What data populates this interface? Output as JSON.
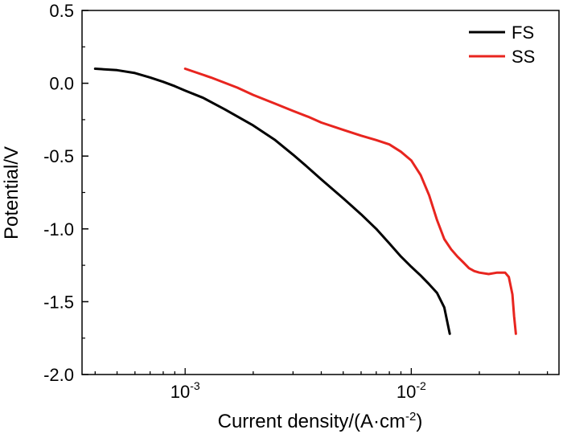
{
  "chart_data": {
    "type": "line",
    "xlabel": "Current density/(A·cm⁻²)",
    "xlabel_base": "Current density/(A·cm",
    "xlabel_exp": "-2",
    "xlabel_tail": ")",
    "ylabel": "Potential/V",
    "x_scale": "log",
    "xlim": [
      0.00035,
      0.045
    ],
    "ylim": [
      -2.0,
      0.5
    ],
    "x_ticks": [
      {
        "value": 0.001,
        "base": "10",
        "exp": "-3"
      },
      {
        "value": 0.01,
        "base": "10",
        "exp": "-2"
      }
    ],
    "y_ticks": [
      {
        "value": 0.5,
        "label": "0.5"
      },
      {
        "value": 0.0,
        "label": "0.0"
      },
      {
        "value": -0.5,
        "label": "-0.5"
      },
      {
        "value": -1.0,
        "label": "-1.0"
      },
      {
        "value": -1.5,
        "label": "-1.5"
      },
      {
        "value": -2.0,
        "label": "-2.0"
      }
    ],
    "legend_position": "top-right",
    "grid": false,
    "series": [
      {
        "name": "FS",
        "color": "#000000",
        "points": [
          [
            0.0004,
            0.1
          ],
          [
            0.0005,
            0.09
          ],
          [
            0.0006,
            0.07
          ],
          [
            0.0007,
            0.04
          ],
          [
            0.0008,
            0.01
          ],
          [
            0.0009,
            -0.02
          ],
          [
            0.001,
            -0.05
          ],
          [
            0.0012,
            -0.1
          ],
          [
            0.0015,
            -0.18
          ],
          [
            0.002,
            -0.29
          ],
          [
            0.0025,
            -0.39
          ],
          [
            0.003,
            -0.49
          ],
          [
            0.0035,
            -0.58
          ],
          [
            0.004,
            -0.66
          ],
          [
            0.005,
            -0.79
          ],
          [
            0.006,
            -0.9
          ],
          [
            0.007,
            -1.0
          ],
          [
            0.008,
            -1.1
          ],
          [
            0.009,
            -1.19
          ],
          [
            0.01,
            -1.26
          ],
          [
            0.011,
            -1.32
          ],
          [
            0.012,
            -1.38
          ],
          [
            0.013,
            -1.44
          ],
          [
            0.014,
            -1.54
          ],
          [
            0.0148,
            -1.72
          ]
        ]
      },
      {
        "name": "SS",
        "color": "#e8251f",
        "points": [
          [
            0.001,
            0.1
          ],
          [
            0.0013,
            0.04
          ],
          [
            0.0017,
            -0.03
          ],
          [
            0.002,
            -0.08
          ],
          [
            0.0025,
            -0.14
          ],
          [
            0.003,
            -0.19
          ],
          [
            0.0035,
            -0.23
          ],
          [
            0.004,
            -0.27
          ],
          [
            0.005,
            -0.32
          ],
          [
            0.006,
            -0.36
          ],
          [
            0.007,
            -0.39
          ],
          [
            0.008,
            -0.42
          ],
          [
            0.009,
            -0.47
          ],
          [
            0.01,
            -0.53
          ],
          [
            0.011,
            -0.63
          ],
          [
            0.012,
            -0.77
          ],
          [
            0.013,
            -0.94
          ],
          [
            0.014,
            -1.07
          ],
          [
            0.015,
            -1.14
          ],
          [
            0.016,
            -1.19
          ],
          [
            0.017,
            -1.23
          ],
          [
            0.018,
            -1.27
          ],
          [
            0.019,
            -1.29
          ],
          [
            0.02,
            -1.3
          ],
          [
            0.022,
            -1.31
          ],
          [
            0.024,
            -1.3
          ],
          [
            0.026,
            -1.3
          ],
          [
            0.027,
            -1.33
          ],
          [
            0.028,
            -1.45
          ],
          [
            0.0285,
            -1.6
          ],
          [
            0.029,
            -1.72
          ]
        ]
      }
    ]
  }
}
